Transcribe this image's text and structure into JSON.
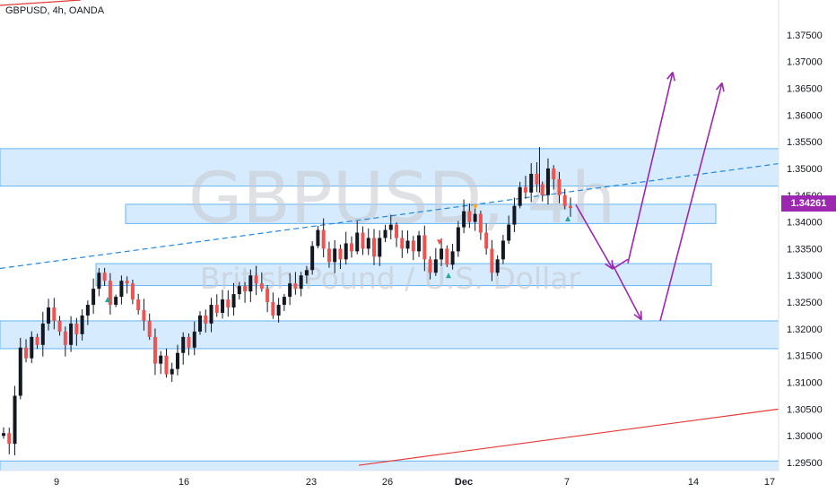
{
  "header": {
    "title": "GBPUSD, 4h, OANDA"
  },
  "watermark": {
    "symbol": "GBPUSD, 4h",
    "description": "British Pound / U.S. Dollar"
  },
  "price_badge": {
    "value": "1.34261",
    "color": "#9c27b0"
  },
  "chart_data": {
    "type": "candlestick",
    "symbol": "GBPUSD",
    "timeframe": "4h",
    "exchange": "OANDA",
    "y_axis": {
      "min": 1.2935,
      "max": 1.3815,
      "ticks": [
        "1.37500",
        "1.37000",
        "1.36500",
        "1.36000",
        "1.35500",
        "1.35000",
        "1.34500",
        "1.34000",
        "1.33500",
        "1.33000",
        "1.32500",
        "1.32000",
        "1.31500",
        "1.31000",
        "1.30500",
        "1.30000",
        "1.29500"
      ]
    },
    "x_axis": {
      "labels": [
        "9",
        "16",
        "23",
        "26",
        "Dec",
        "7",
        "14",
        "17"
      ]
    },
    "zones": [
      {
        "from": 1.3467,
        "to": 1.3537
      },
      {
        "from": 1.3397,
        "to": 1.3433
      },
      {
        "from": 1.3281,
        "to": 1.3322
      },
      {
        "from": 1.3163,
        "to": 1.3215
      },
      {
        "from": 1.2935,
        "to": 1.2953
      }
    ],
    "trendlines": [
      {
        "style": "dashed",
        "color": "#1e88e5",
        "from": 1.3313,
        "to": 1.3509
      },
      {
        "style": "solid",
        "color": "#e53935",
        "from": 1.2945,
        "to": 1.305
      },
      {
        "style": "solid",
        "color": "#e53935",
        "from": 1.3805,
        "to": 1.3815
      }
    ],
    "closes": [
      1.3005,
      1.2985,
      1.3075,
      1.3165,
      1.3145,
      1.3185,
      1.317,
      1.321,
      1.324,
      1.3215,
      1.3195,
      1.317,
      1.321,
      1.319,
      1.3225,
      1.3245,
      1.3275,
      1.3305,
      1.329,
      1.3245,
      1.326,
      1.329,
      1.3285,
      1.3255,
      1.3235,
      1.3215,
      1.3185,
      1.3135,
      1.315,
      1.3115,
      1.3125,
      1.3155,
      1.3185,
      1.3165,
      1.3195,
      1.3225,
      1.321,
      1.3245,
      1.323,
      1.3255,
      1.324,
      1.3265,
      1.328,
      1.327,
      1.33,
      1.3285,
      1.3275,
      1.325,
      1.3225,
      1.3245,
      1.326,
      1.3285,
      1.3275,
      1.33,
      1.331,
      1.3355,
      1.3385,
      1.335,
      1.3325,
      1.335,
      1.333,
      1.336,
      1.3345,
      1.338,
      1.335,
      1.337,
      1.3335,
      1.337,
      1.3385,
      1.3395,
      1.337,
      1.335,
      1.3365,
      1.3345,
      1.3375,
      1.333,
      1.3305,
      1.333,
      1.335,
      1.332,
      1.3345,
      1.339,
      1.342,
      1.34,
      1.3415,
      1.338,
      1.335,
      1.3305,
      1.333,
      1.3365,
      1.3395,
      1.343,
      1.3465,
      1.3455,
      1.349,
      1.347,
      1.345,
      1.35,
      1.348,
      1.345,
      1.343,
      1.3426
    ],
    "projection_arrows": [
      {
        "from": 1.3432,
        "to": 1.3312
      },
      {
        "from": 1.3312,
        "to": 1.333
      },
      {
        "from": 1.332,
        "to": 1.3217
      },
      {
        "from": 1.3323,
        "to": 1.368
      },
      {
        "from": 1.3215,
        "to": 1.366
      }
    ],
    "grid": false
  }
}
